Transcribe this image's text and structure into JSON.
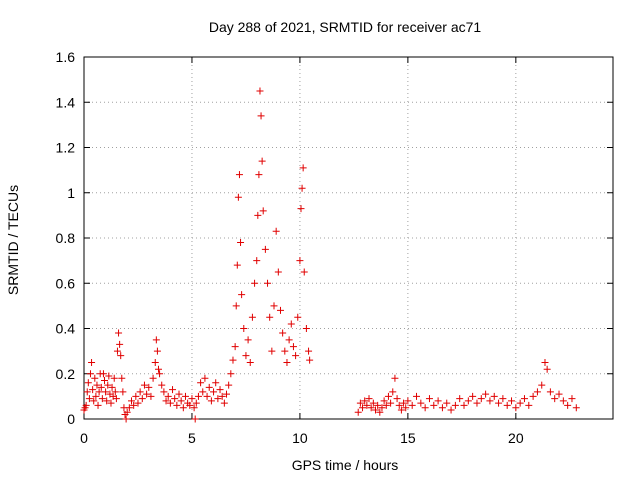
{
  "chart_data": {
    "type": "scatter",
    "title": "Day 288 of 2021, SRMTID for receiver ac71",
    "xlabel": "GPS time / hours",
    "ylabel": "SRMTID / TECUs",
    "xlim": [
      0,
      24.5
    ],
    "ylim": [
      0,
      1.6
    ],
    "xticks": [
      0,
      5,
      10,
      15,
      20
    ],
    "xtick_labels": [
      "0",
      "5",
      "10",
      "15",
      "20"
    ],
    "yticks": [
      0,
      0.2,
      0.4,
      0.6,
      0.8,
      1,
      1.2,
      1.4,
      1.6
    ],
    "ytick_labels": [
      "0",
      "0.2",
      "0.4",
      "0.6",
      "0.8",
      "1",
      "1.2",
      "1.4",
      "1.6"
    ],
    "grid": true,
    "marker": "+",
    "series": [
      {
        "name": "SRMTID",
        "color": "#e00000",
        "points": [
          [
            0.0,
            0.04
          ],
          [
            0.05,
            0.05
          ],
          [
            0.1,
            0.06
          ],
          [
            0.15,
            0.12
          ],
          [
            0.2,
            0.16
          ],
          [
            0.25,
            0.09
          ],
          [
            0.3,
            0.2
          ],
          [
            0.35,
            0.25
          ],
          [
            0.4,
            0.13
          ],
          [
            0.45,
            0.08
          ],
          [
            0.5,
            0.18
          ],
          [
            0.55,
            0.1
          ],
          [
            0.6,
            0.15
          ],
          [
            0.65,
            0.06
          ],
          [
            0.7,
            0.12
          ],
          [
            0.75,
            0.2
          ],
          [
            0.8,
            0.14
          ],
          [
            0.85,
            0.09
          ],
          [
            0.9,
            0.2
          ],
          [
            0.95,
            0.17
          ],
          [
            1.0,
            0.12
          ],
          [
            1.05,
            0.08
          ],
          [
            1.1,
            0.15
          ],
          [
            1.15,
            0.19
          ],
          [
            1.2,
            0.11
          ],
          [
            1.25,
            0.07
          ],
          [
            1.3,
            0.14
          ],
          [
            1.35,
            0.1
          ],
          [
            1.4,
            0.18
          ],
          [
            1.45,
            0.12
          ],
          [
            1.5,
            0.09
          ],
          [
            1.55,
            0.3
          ],
          [
            1.6,
            0.38
          ],
          [
            1.65,
            0.33
          ],
          [
            1.7,
            0.28
          ],
          [
            1.75,
            0.18
          ],
          [
            1.8,
            0.12
          ],
          [
            1.85,
            0.05
          ],
          [
            1.9,
            0.02
          ],
          [
            1.95,
            0.0
          ],
          [
            2.0,
            0.03
          ],
          [
            2.1,
            0.05
          ],
          [
            2.2,
            0.08
          ],
          [
            2.3,
            0.06
          ],
          [
            2.4,
            0.1
          ],
          [
            2.5,
            0.07
          ],
          [
            2.6,
            0.12
          ],
          [
            2.7,
            0.09
          ],
          [
            2.8,
            0.15
          ],
          [
            2.9,
            0.11
          ],
          [
            3.0,
            0.14
          ],
          [
            3.1,
            0.1
          ],
          [
            3.2,
            0.18
          ],
          [
            3.3,
            0.25
          ],
          [
            3.35,
            0.35
          ],
          [
            3.4,
            0.3
          ],
          [
            3.45,
            0.22
          ],
          [
            3.5,
            0.2
          ],
          [
            3.6,
            0.15
          ],
          [
            3.7,
            0.12
          ],
          [
            3.8,
            0.08
          ],
          [
            3.9,
            0.1
          ],
          [
            4.0,
            0.07
          ],
          [
            4.1,
            0.13
          ],
          [
            4.2,
            0.09
          ],
          [
            4.3,
            0.06
          ],
          [
            4.4,
            0.11
          ],
          [
            4.5,
            0.08
          ],
          [
            4.6,
            0.05
          ],
          [
            4.7,
            0.1
          ],
          [
            4.8,
            0.07
          ],
          [
            4.9,
            0.06
          ],
          [
            5.0,
            0.09
          ],
          [
            5.1,
            0.05
          ],
          [
            5.15,
            0.0
          ],
          [
            5.2,
            0.07
          ],
          [
            5.3,
            0.1
          ],
          [
            5.4,
            0.16
          ],
          [
            5.5,
            0.12
          ],
          [
            5.6,
            0.18
          ],
          [
            5.7,
            0.1
          ],
          [
            5.8,
            0.14
          ],
          [
            5.9,
            0.08
          ],
          [
            6.0,
            0.12
          ],
          [
            6.1,
            0.16
          ],
          [
            6.2,
            0.09
          ],
          [
            6.3,
            0.13
          ],
          [
            6.4,
            0.1
          ],
          [
            6.5,
            0.07
          ],
          [
            6.6,
            0.11
          ],
          [
            6.7,
            0.15
          ],
          [
            6.8,
            0.2
          ],
          [
            6.9,
            0.26
          ],
          [
            7.0,
            0.32
          ],
          [
            7.05,
            0.5
          ],
          [
            7.1,
            0.68
          ],
          [
            7.15,
            0.98
          ],
          [
            7.2,
            1.08
          ],
          [
            7.25,
            0.78
          ],
          [
            7.3,
            0.55
          ],
          [
            7.4,
            0.4
          ],
          [
            7.5,
            0.28
          ],
          [
            7.6,
            0.35
          ],
          [
            7.7,
            0.25
          ],
          [
            7.8,
            0.45
          ],
          [
            7.9,
            0.6
          ],
          [
            8.0,
            0.7
          ],
          [
            8.05,
            0.9
          ],
          [
            8.1,
            1.08
          ],
          [
            8.15,
            1.45
          ],
          [
            8.2,
            1.34
          ],
          [
            8.25,
            1.14
          ],
          [
            8.3,
            0.92
          ],
          [
            8.4,
            0.75
          ],
          [
            8.5,
            0.6
          ],
          [
            8.6,
            0.45
          ],
          [
            8.7,
            0.3
          ],
          [
            8.8,
            0.5
          ],
          [
            8.9,
            0.83
          ],
          [
            9.0,
            0.65
          ],
          [
            9.1,
            0.48
          ],
          [
            9.2,
            0.38
          ],
          [
            9.3,
            0.3
          ],
          [
            9.4,
            0.25
          ],
          [
            9.5,
            0.35
          ],
          [
            9.6,
            0.42
          ],
          [
            9.7,
            0.32
          ],
          [
            9.8,
            0.28
          ],
          [
            9.9,
            0.45
          ],
          [
            10.0,
            0.7
          ],
          [
            10.05,
            0.93
          ],
          [
            10.1,
            1.02
          ],
          [
            10.15,
            1.11
          ],
          [
            10.2,
            0.65
          ],
          [
            10.3,
            0.4
          ],
          [
            10.4,
            0.3
          ],
          [
            10.45,
            0.26
          ],
          [
            12.7,
            0.03
          ],
          [
            12.8,
            0.07
          ],
          [
            12.9,
            0.05
          ],
          [
            13.0,
            0.08
          ],
          [
            13.1,
            0.06
          ],
          [
            13.2,
            0.09
          ],
          [
            13.3,
            0.05
          ],
          [
            13.4,
            0.07
          ],
          [
            13.5,
            0.04
          ],
          [
            13.6,
            0.06
          ],
          [
            13.7,
            0.03
          ],
          [
            13.8,
            0.05
          ],
          [
            13.9,
            0.08
          ],
          [
            14.0,
            0.06
          ],
          [
            14.1,
            0.1
          ],
          [
            14.2,
            0.07
          ],
          [
            14.3,
            0.12
          ],
          [
            14.4,
            0.18
          ],
          [
            14.5,
            0.09
          ],
          [
            14.6,
            0.06
          ],
          [
            14.7,
            0.04
          ],
          [
            14.8,
            0.07
          ],
          [
            14.9,
            0.05
          ],
          [
            15.0,
            0.08
          ],
          [
            15.2,
            0.06
          ],
          [
            15.4,
            0.1
          ],
          [
            15.6,
            0.07
          ],
          [
            15.8,
            0.05
          ],
          [
            16.0,
            0.09
          ],
          [
            16.2,
            0.06
          ],
          [
            16.4,
            0.08
          ],
          [
            16.6,
            0.05
          ],
          [
            16.8,
            0.07
          ],
          [
            17.0,
            0.04
          ],
          [
            17.2,
            0.06
          ],
          [
            17.4,
            0.09
          ],
          [
            17.6,
            0.06
          ],
          [
            17.8,
            0.08
          ],
          [
            18.0,
            0.1
          ],
          [
            18.2,
            0.07
          ],
          [
            18.4,
            0.09
          ],
          [
            18.6,
            0.11
          ],
          [
            18.8,
            0.08
          ],
          [
            19.0,
            0.1
          ],
          [
            19.2,
            0.07
          ],
          [
            19.4,
            0.09
          ],
          [
            19.6,
            0.06
          ],
          [
            19.8,
            0.08
          ],
          [
            20.0,
            0.05
          ],
          [
            20.2,
            0.07
          ],
          [
            20.4,
            0.09
          ],
          [
            20.6,
            0.06
          ],
          [
            20.8,
            0.1
          ],
          [
            21.0,
            0.12
          ],
          [
            21.2,
            0.15
          ],
          [
            21.35,
            0.25
          ],
          [
            21.45,
            0.22
          ],
          [
            21.6,
            0.12
          ],
          [
            21.8,
            0.09
          ],
          [
            22.0,
            0.11
          ],
          [
            22.2,
            0.08
          ],
          [
            22.4,
            0.06
          ],
          [
            22.6,
            0.09
          ],
          [
            22.8,
            0.05
          ]
        ]
      }
    ]
  }
}
